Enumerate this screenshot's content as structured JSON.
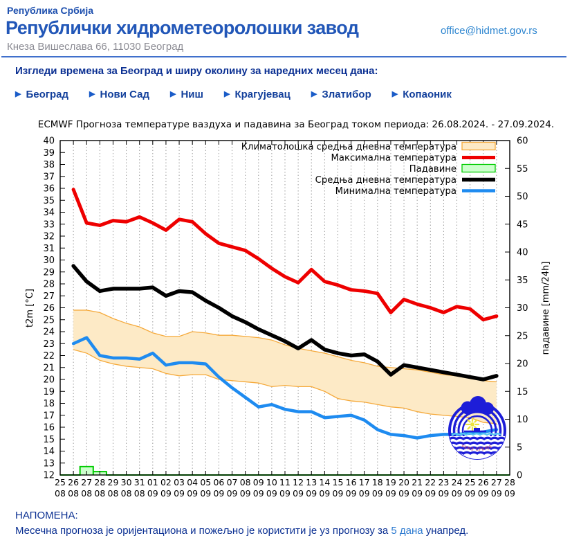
{
  "header": {
    "country": "Република Србија",
    "title": "Републички хидрометеоролошки завод",
    "email": "office@hidmet.gov.rs",
    "address": "Кнеза Вишеслава 66, 11030 Београд"
  },
  "section": {
    "heading": "Изгледи времена за Београд и ширу околину за наредних месец дана:",
    "links": [
      "Београд",
      "Нови Сад",
      "Ниш",
      "Крагујевац",
      "Златибор",
      "Копаоник"
    ],
    "slugs": [
      "beograd",
      "novi-sad",
      "nis",
      "kragujevac",
      "zlatibor",
      "kopaonik"
    ],
    "arrow_icon": "▶"
  },
  "note": {
    "label": "НАПОМЕНА:",
    "text_before": "Месечна прогноза је оријентациона и пожељно је користити је уз прогнозу за ",
    "link": "5 дана",
    "text_after": " унапред."
  },
  "colors": {
    "brand_blue": "#2257b8",
    "navy": "#0a2f92",
    "link_blue": "#2e86d0",
    "max_red": "#ee0000",
    "mean_black": "#000000",
    "min_blue": "#1e8bf0",
    "band_fill": "#fdeac6",
    "band_edge": "#f5a93a",
    "precip_green": "#00cc00",
    "precip_fill": "#ccffcc",
    "logo_blue": "#1d1dd8"
  },
  "chart_data": {
    "type": "line",
    "title": "ECMWF Прогноза температуре ваздуха и падавина за Београд током периода: 26.08.2024. - 27.09.2024.",
    "ylabel_left": "t2m [°C]",
    "ylabel_right": "падавине [mm/24h]",
    "ylim_left": [
      12,
      40
    ],
    "ylim_right": [
      0,
      60
    ],
    "grid": "vertical-dotted-daily",
    "legend_position": "top-right-inside",
    "logo_text": "РХМЗ СРБИЈЕ",
    "categories": [
      "25.08",
      "26.08",
      "27.08",
      "28.08",
      "29.08",
      "30.08",
      "31.08",
      "01.09",
      "02.09",
      "03.09",
      "04.09",
      "05.09",
      "06.09",
      "07.09",
      "08.09",
      "09.09",
      "10.09",
      "11.09",
      "12.09",
      "13.09",
      "14.09",
      "15.09",
      "16.09",
      "17.09",
      "18.09",
      "19.09",
      "20.09",
      "21.09",
      "22.09",
      "23.09",
      "24.09",
      "25.09",
      "26.09",
      "27.09",
      "28.09"
    ],
    "data_start_index": 1,
    "series": [
      {
        "id": "climatology",
        "name": "Климатолошка средња дневна температура",
        "swatch": "box",
        "color": "#f5a93a",
        "fill": "#fdeac6",
        "axis": "left",
        "upper": [
          25.8,
          25.8,
          25.6,
          25.1,
          24.7,
          24.4,
          23.9,
          23.6,
          23.6,
          24.0,
          23.9,
          23.7,
          23.7,
          23.6,
          23.5,
          23.3,
          22.9,
          22.6,
          22.4,
          22.2,
          21.9,
          21.6,
          21.4,
          21.1,
          21.0,
          20.9,
          20.8,
          20.6,
          20.4,
          20.3,
          20.1,
          19.9,
          19.8
        ],
        "lower": [
          22.5,
          22.2,
          21.6,
          21.3,
          21.1,
          21.0,
          20.9,
          20.5,
          20.3,
          20.4,
          20.4,
          20.0,
          19.9,
          19.8,
          19.7,
          19.4,
          19.5,
          19.4,
          19.4,
          19.0,
          18.4,
          18.2,
          18.1,
          17.9,
          17.7,
          17.6,
          17.3,
          17.1,
          17.0,
          16.9,
          16.8,
          16.4,
          16.3
        ]
      },
      {
        "id": "max",
        "name": "Максимална температура",
        "swatch": "line",
        "color": "#ee0000",
        "width": 5,
        "axis": "left",
        "values": [
          35.9,
          33.1,
          32.9,
          33.3,
          33.2,
          33.6,
          33.1,
          32.5,
          33.4,
          33.2,
          32.2,
          31.4,
          31.1,
          30.8,
          30.1,
          29.3,
          28.6,
          28.1,
          29.2,
          28.2,
          27.9,
          27.5,
          27.4,
          27.2,
          25.6,
          26.7,
          26.3,
          26.0,
          25.6,
          26.1,
          25.9,
          25.0,
          25.3
        ]
      },
      {
        "id": "precipitation",
        "name": "Падавине",
        "swatch": "box",
        "color": "#00cc00",
        "fill": "#ccffcc",
        "axis": "right",
        "values": [
          0,
          1.5,
          0.6,
          0,
          0,
          0,
          0,
          0,
          0,
          0,
          0,
          0,
          0,
          0,
          0,
          0,
          0,
          0,
          0,
          0,
          0,
          0,
          0,
          0,
          0,
          0,
          0,
          0,
          0,
          0,
          0,
          0,
          0
        ]
      },
      {
        "id": "mean",
        "name": "Средња дневна температура",
        "swatch": "line",
        "color": "#000000",
        "width": 5.5,
        "axis": "left",
        "values": [
          29.5,
          28.2,
          27.4,
          27.6,
          27.6,
          27.6,
          27.7,
          27.0,
          27.4,
          27.3,
          26.6,
          26.0,
          25.3,
          24.8,
          24.2,
          23.7,
          23.2,
          22.6,
          23.3,
          22.5,
          22.2,
          22.0,
          22.1,
          21.5,
          20.4,
          21.2,
          21.0,
          20.8,
          20.6,
          20.4,
          20.2,
          20.0,
          20.3
        ]
      },
      {
        "id": "min",
        "name": "Минимална температура",
        "swatch": "line",
        "color": "#1e8bf0",
        "width": 4.5,
        "axis": "left",
        "values": [
          23.0,
          23.5,
          22.0,
          21.8,
          21.8,
          21.7,
          22.2,
          21.2,
          21.4,
          21.4,
          21.3,
          20.2,
          19.3,
          18.5,
          17.7,
          17.9,
          17.5,
          17.3,
          17.3,
          16.8,
          16.9,
          17.0,
          16.6,
          15.8,
          15.4,
          15.3,
          15.1,
          15.3,
          15.4,
          15.4,
          15.5,
          15.6,
          15.8
        ]
      }
    ]
  }
}
